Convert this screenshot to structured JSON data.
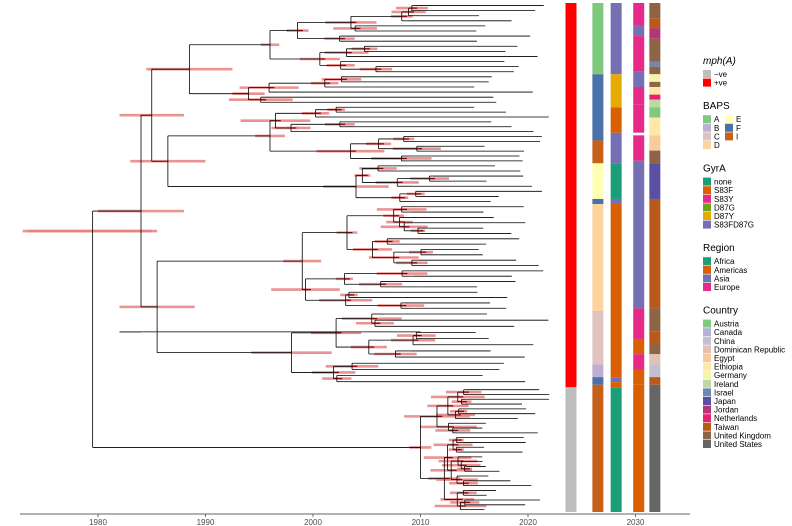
{
  "chart_data": {
    "type": "phylogenetic-tree-with-annotation-strips",
    "x_axis": {
      "unit": "year",
      "range": [
        1973,
        2033
      ],
      "ticks": [
        1980,
        1990,
        2000,
        2010,
        2020,
        2030
      ],
      "tick_labels": [
        "1980",
        "1990",
        "2000",
        "2010",
        "2020",
        "2030"
      ]
    },
    "tree": {
      "root_year": 1979.5,
      "root_hpd": [
        1973,
        1985
      ],
      "branch_color": "#000000",
      "node_hpd_color": "#e8807f",
      "tip_span_year": [
        2015,
        2022
      ],
      "n_tips_approx": 110
    },
    "strips": [
      {
        "name": "mph(A)",
        "column_year": 2024
      },
      {
        "name": "BAPS",
        "column_year": 2026.5
      },
      {
        "name": "GyrA",
        "column_year": 2028.2
      },
      {
        "name": "Region",
        "column_year": 2030.3
      },
      {
        "name": "Country",
        "column_year": 2031.8
      }
    ],
    "legends": [
      {
        "title": "mph(A)",
        "italic": true,
        "columns": 1,
        "entries": [
          {
            "label": "−ve",
            "color": "#bdbdbd"
          },
          {
            "label": "+ve",
            "color": "#ff0000"
          }
        ]
      },
      {
        "title": "BAPS",
        "italic": false,
        "columns": 2,
        "entries": [
          {
            "label": "A",
            "color": "#7fc97f"
          },
          {
            "label": "B",
            "color": "#beaed4"
          },
          {
            "label": "C",
            "color": "#e0c2bf"
          },
          {
            "label": "D",
            "color": "#fdd49e"
          },
          {
            "label": "E",
            "color": "#ffffb3"
          },
          {
            "label": "F",
            "color": "#4a72a8"
          },
          {
            "label": "I",
            "color": "#c6611a"
          }
        ]
      },
      {
        "title": "GyrA",
        "italic": false,
        "columns": 1,
        "entries": [
          {
            "label": "none",
            "color": "#1b9e77"
          },
          {
            "label": "S83F",
            "color": "#d95f02"
          },
          {
            "label": "S83Y",
            "color": "#e7298a"
          },
          {
            "label": "D87G",
            "color": "#66a61e"
          },
          {
            "label": "D87Y",
            "color": "#e6ab02"
          },
          {
            "label": "S83FD87G",
            "color": "#7570b3"
          }
        ]
      },
      {
        "title": "Region",
        "italic": false,
        "columns": 1,
        "entries": [
          {
            "label": "Africa",
            "color": "#1b9e77"
          },
          {
            "label": "Americas",
            "color": "#d95f02"
          },
          {
            "label": "Asia",
            "color": "#7570b3"
          },
          {
            "label": "Europe",
            "color": "#e7298a"
          }
        ]
      },
      {
        "title": "Country",
        "italic": false,
        "columns": 1,
        "entries": [
          {
            "label": "Austria",
            "color": "#7fc97f"
          },
          {
            "label": "Canada",
            "color": "#b2b2d6"
          },
          {
            "label": "China",
            "color": "#c3bfcf"
          },
          {
            "label": "Dominican Republic",
            "color": "#e3c1b5"
          },
          {
            "label": "Egypt",
            "color": "#f9ca9c"
          },
          {
            "label": "Ethiopia",
            "color": "#fde9a5"
          },
          {
            "label": "Germany",
            "color": "#f6f3b0"
          },
          {
            "label": "Ireland",
            "color": "#bcd9a5"
          },
          {
            "label": "Israel",
            "color": "#6f88b3"
          },
          {
            "label": "Japan",
            "color": "#5a4fa3"
          },
          {
            "label": "Jordan",
            "color": "#b5357a"
          },
          {
            "label": "Netherlands",
            "color": "#e8206d"
          },
          {
            "label": "Taiwan",
            "color": "#b85a1b"
          },
          {
            "label": "United Kingdom",
            "color": "#8e6445"
          },
          {
            "label": "United States",
            "color": "#666666"
          }
        ]
      }
    ],
    "strip_segments": {
      "mph": [
        [
          0.0,
          0.755,
          "#ff0000"
        ],
        [
          0.755,
          1.0,
          "#bdbdbd"
        ]
      ],
      "baps": [
        [
          0.0,
          0.14,
          "#7fc97f"
        ],
        [
          0.14,
          0.27,
          "#4a72a8"
        ],
        [
          0.27,
          0.315,
          "#c6611a"
        ],
        [
          0.315,
          0.385,
          "#ffffb3"
        ],
        [
          0.385,
          0.395,
          "#4a72a8"
        ],
        [
          0.395,
          0.605,
          "#fdd49e"
        ],
        [
          0.605,
          0.71,
          "#e0c2bf"
        ],
        [
          0.71,
          0.735,
          "#beaed4"
        ],
        [
          0.735,
          0.75,
          "#4a72a8"
        ],
        [
          0.75,
          1.0,
          "#c6611a"
        ]
      ],
      "gyra": [
        [
          0.0,
          0.14,
          "#7570b3"
        ],
        [
          0.14,
          0.205,
          "#e6ab02"
        ],
        [
          0.205,
          0.255,
          "#d95f02"
        ],
        [
          0.255,
          0.315,
          "#7570b3"
        ],
        [
          0.315,
          0.385,
          "#1b9e77"
        ],
        [
          0.385,
          0.395,
          "#7570b3"
        ],
        [
          0.395,
          0.735,
          "#d95f02"
        ],
        [
          0.735,
          0.745,
          "#7570b3"
        ],
        [
          0.745,
          0.755,
          "#d95f02"
        ],
        [
          0.755,
          1.0,
          "#1b9e77"
        ]
      ],
      "region": [
        [
          0.0,
          0.045,
          "#e7298a"
        ],
        [
          0.045,
          0.065,
          "#7570b3"
        ],
        [
          0.065,
          0.135,
          "#e7298a"
        ],
        [
          0.135,
          0.165,
          "#7570b3"
        ],
        [
          0.165,
          0.2,
          "#e7298a"
        ],
        [
          0.2,
          0.255,
          "#e7298a"
        ],
        [
          0.255,
          0.26,
          "#ffffff"
        ],
        [
          0.26,
          0.31,
          "#e7298a"
        ],
        [
          0.31,
          0.6,
          "#7570b3"
        ],
        [
          0.6,
          0.66,
          "#e7298a"
        ],
        [
          0.66,
          0.69,
          "#d95f02"
        ],
        [
          0.69,
          0.72,
          "#e7298a"
        ],
        [
          0.72,
          0.75,
          "#d95f02"
        ],
        [
          0.75,
          1.0,
          "#d95f02"
        ]
      ],
      "country": [
        [
          0.0,
          0.03,
          "#8e6445"
        ],
        [
          0.03,
          0.05,
          "#b85a1b"
        ],
        [
          0.05,
          0.07,
          "#b5357a"
        ],
        [
          0.07,
          0.115,
          "#8e6445"
        ],
        [
          0.115,
          0.125,
          "#6f88b3"
        ],
        [
          0.125,
          0.14,
          "#8e6445"
        ],
        [
          0.14,
          0.155,
          "#f6f3b0"
        ],
        [
          0.155,
          0.165,
          "#8e6445"
        ],
        [
          0.165,
          0.18,
          "#fde9a5"
        ],
        [
          0.18,
          0.19,
          "#e8206d"
        ],
        [
          0.19,
          0.205,
          "#bcd9a5"
        ],
        [
          0.205,
          0.225,
          "#7fc97f"
        ],
        [
          0.225,
          0.26,
          "#fde9a5"
        ],
        [
          0.26,
          0.29,
          "#f9ca9c"
        ],
        [
          0.29,
          0.315,
          "#8e6445"
        ],
        [
          0.315,
          0.385,
          "#5a4fa3"
        ],
        [
          0.385,
          0.6,
          "#b85a1b"
        ],
        [
          0.6,
          0.645,
          "#8e6445"
        ],
        [
          0.645,
          0.67,
          "#b85a1b"
        ],
        [
          0.67,
          0.69,
          "#8e6445"
        ],
        [
          0.69,
          0.71,
          "#e3c1b5"
        ],
        [
          0.71,
          0.735,
          "#c3bfcf"
        ],
        [
          0.735,
          0.75,
          "#b85a1b"
        ],
        [
          0.75,
          1.0,
          "#666666"
        ]
      ]
    }
  }
}
